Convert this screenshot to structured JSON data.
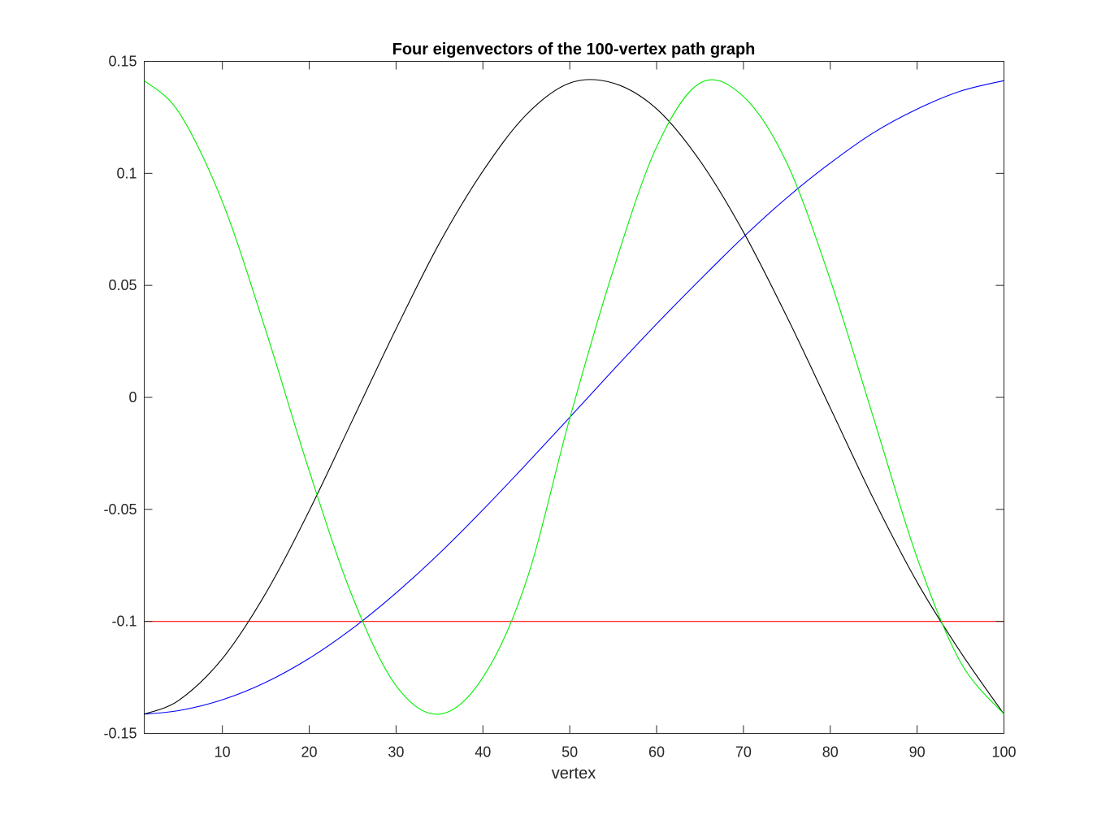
{
  "chart_data": {
    "type": "line",
    "title": "Four eigenvectors of the 100-vertex path graph",
    "xlabel": "vertex",
    "ylabel": "",
    "xlim": [
      1,
      100
    ],
    "ylim": [
      -0.15,
      0.15
    ],
    "xticks": [
      10,
      20,
      30,
      40,
      50,
      60,
      70,
      80,
      90,
      100
    ],
    "xtick_labels": [
      "10",
      "20",
      "30",
      "40",
      "50",
      "60",
      "70",
      "80",
      "90",
      "100"
    ],
    "yticks": [
      0.15,
      0.1,
      0.05,
      0,
      -0.05,
      -0.1,
      -0.15
    ],
    "ytick_labels": [
      "0.15",
      "0.1",
      "0.05",
      "0",
      "-0.05",
      "-0.1",
      "-0.15"
    ],
    "grid": false,
    "legend": "none",
    "x": [
      1,
      5,
      10,
      15,
      20,
      25,
      30,
      35,
      40,
      45,
      50,
      55,
      60,
      65,
      70,
      75,
      80,
      85,
      90,
      95,
      100
    ],
    "series": [
      {
        "color": "#ff0000",
        "values": [
          -0.1,
          -0.1,
          -0.1,
          -0.1,
          -0.1,
          -0.1,
          -0.1,
          -0.1,
          -0.1,
          -0.1,
          -0.1,
          -0.1,
          -0.1,
          -0.1,
          -0.1,
          -0.1,
          -0.1,
          -0.1,
          -0.1,
          -0.1,
          -0.1
        ]
      },
      {
        "color": "#0000ff",
        "values": [
          -0.1414,
          -0.1398,
          -0.135,
          -0.1272,
          -0.1165,
          -0.1031,
          -0.0873,
          -0.0696,
          -0.0502,
          -0.0298,
          -0.0089,
          0.0122,
          0.0328,
          0.0525,
          0.0716,
          0.0891,
          0.1046,
          0.1182,
          0.1287,
          0.1367,
          0.1414
        ]
      },
      {
        "color": "#000000",
        "values": [
          -0.1414,
          -0.1352,
          -0.1166,
          -0.0874,
          -0.0506,
          -0.01,
          0.0306,
          0.0689,
          0.101,
          0.1262,
          0.1403,
          0.1403,
          0.1288,
          0.1056,
          0.0738,
          0.036,
          -0.0047,
          -0.0455,
          -0.0825,
          -0.1137,
          -0.1414
        ]
      },
      {
        "color": "#00ee00",
        "values": [
          0.1414,
          0.1272,
          0.0873,
          0.0298,
          -0.0328,
          -0.0892,
          -0.1287,
          -0.1414,
          -0.125,
          -0.082,
          -0.0094,
          0.0567,
          0.1118,
          0.1403,
          0.1343,
          0.1046,
          0.0525,
          -0.0094,
          -0.0716,
          -0.1182,
          -0.1414
        ]
      }
    ]
  }
}
